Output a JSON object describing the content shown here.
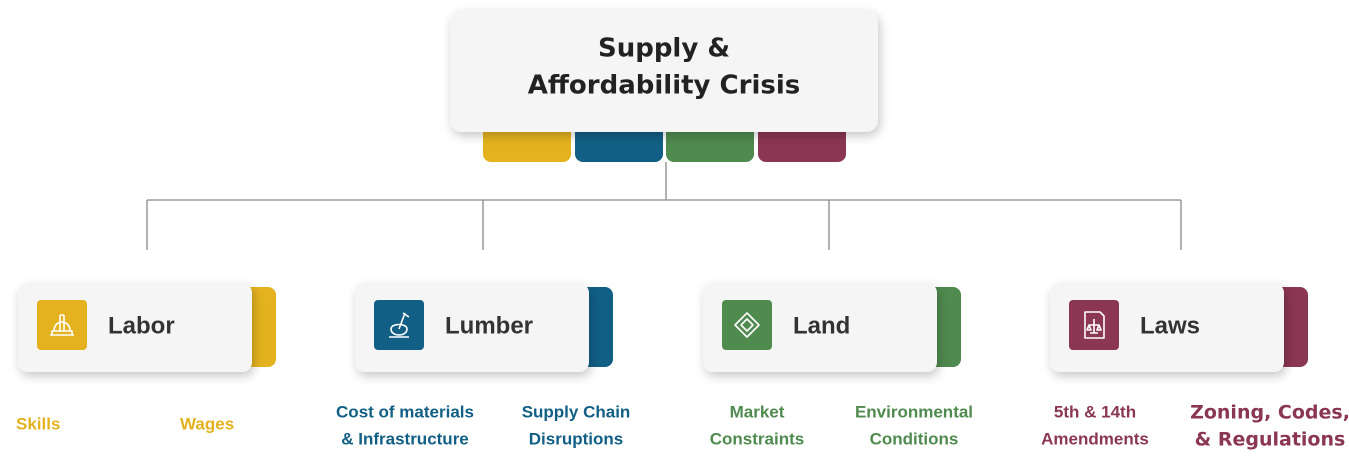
{
  "root": {
    "title_lines": [
      "Supply &",
      "Affordability Crisis"
    ]
  },
  "categories": [
    {
      "label": "Labor",
      "color": "#e3b21e",
      "items": [
        [
          "Skills"
        ],
        [
          "Wages"
        ]
      ]
    },
    {
      "label": "Lumber",
      "color": "#115f85",
      "items": [
        [
          "Cost of materials",
          "& Infrastructure"
        ],
        [
          "Supply Chain",
          "Disruptions"
        ]
      ]
    },
    {
      "label": "Land",
      "color": "#4f8a4f",
      "items": [
        [
          "Market",
          "Constraints"
        ],
        [
          "Environmental",
          "Conditions"
        ]
      ]
    },
    {
      "label": "Laws",
      "color": "#8b3653",
      "items": [
        [
          "5th & 14th",
          "Amendments"
        ],
        [
          "Zoning, Codes,",
          "& Regulations"
        ]
      ]
    }
  ]
}
